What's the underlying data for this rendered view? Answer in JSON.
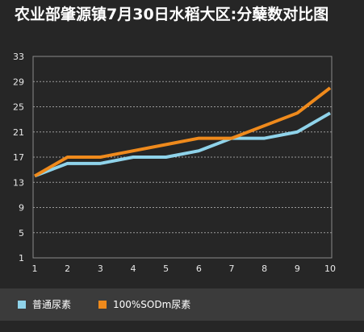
{
  "chart_data": {
    "type": "line",
    "title": "农业部肇源镇7月30日水稻大区:分蘖数对比图",
    "x": [
      1,
      2,
      3,
      4,
      5,
      6,
      7,
      8,
      9,
      10
    ],
    "xlabel": "",
    "ylabel": "",
    "ylim": [
      1,
      33
    ],
    "yticks": [
      1,
      5,
      9,
      13,
      17,
      21,
      25,
      29,
      33
    ],
    "grid": true,
    "legend_position": "bottom",
    "series": [
      {
        "name": "普通尿素",
        "color": "#8fd3ea",
        "values": [
          14,
          16,
          16,
          17,
          17,
          18,
          20,
          20,
          21,
          24
        ]
      },
      {
        "name": "100%SODm尿素",
        "color": "#ef8a1c",
        "values": [
          14,
          17,
          17,
          18,
          19,
          20,
          20,
          22,
          24,
          28
        ]
      }
    ]
  }
}
